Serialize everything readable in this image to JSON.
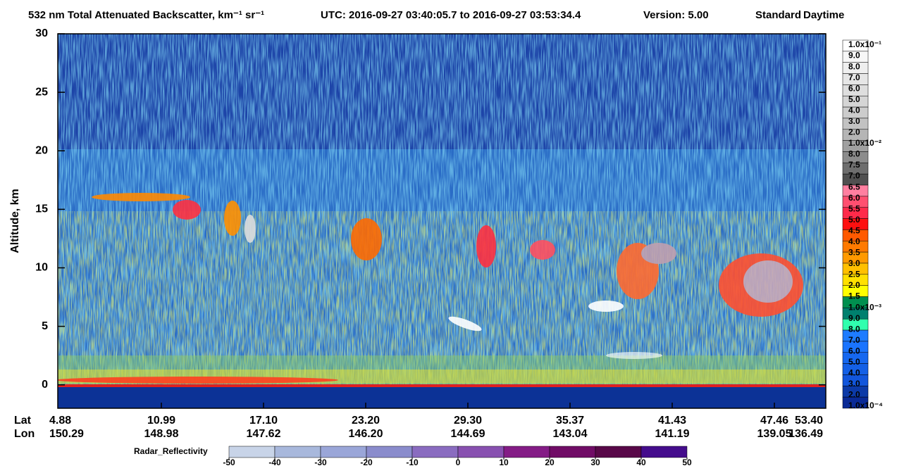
{
  "chart_data": {
    "type": "curtain",
    "title": "532 nm Total Attenuated Backscatter, km⁻¹ sr⁻¹",
    "utc": "UTC:  2016-09-27 03:40:05.7  to  2016-09-27 03:53:34.4",
    "version": "Version: 5.00",
    "mode": "Standard",
    "daytime": "Daytime",
    "ylabel": "Altitude, km",
    "ylim": [
      -2,
      30
    ],
    "yticks": [
      0,
      5,
      10,
      15,
      20,
      25,
      30
    ],
    "x_rows": [
      {
        "name": "Lat",
        "labels": [
          "4.88",
          "10.99",
          "17.10",
          "23.20",
          "29.30",
          "35.37",
          "41.43",
          "47.46",
          "53.40"
        ]
      },
      {
        "name": "Lon",
        "labels": [
          "150.29",
          "148.98",
          "147.62",
          "146.20",
          "144.69",
          "143.04",
          "141.19",
          "139.05",
          "136.49"
        ]
      }
    ],
    "colorbar": {
      "labels": [
        "1.0x10⁻¹",
        "9.0",
        "8.0",
        "7.0",
        "6.0",
        "5.0",
        "4.0",
        "3.0",
        "2.0",
        "1.0x10⁻²",
        "8.0",
        "7.5",
        "7.0",
        "6.5",
        "6.0",
        "5.5",
        "5.0",
        "4.5",
        "4.0",
        "3.5",
        "3.0",
        "2.5",
        "2.0",
        "1.5",
        "1.0x10⁻³",
        "9.0",
        "8.0",
        "7.0",
        "6.0",
        "5.0",
        "4.0",
        "3.0",
        "2.0",
        "1.0x10⁻⁴"
      ],
      "colors": [
        "#ffffff",
        "#f7f7f7",
        "#efefef",
        "#e6e6e6",
        "#dedede",
        "#d5d5d5",
        "#cccccc",
        "#c2c2c2",
        "#b5b5b5",
        "#a0a0a0",
        "#8c8c8c",
        "#6e6e6e",
        "#505050",
        "#ff7fa0",
        "#ff4f70",
        "#ff2a4a",
        "#ff1010",
        "#ff5a00",
        "#ff7a00",
        "#ff9a00",
        "#ffc000",
        "#ffe000",
        "#ffff00",
        "#008f4f",
        "#00806e",
        "#30ffae",
        "#1e7cff",
        "#1a74ff",
        "#1668f0",
        "#1460e6",
        "#1256dc",
        "#0c3aa8",
        "#0a2a96"
      ]
    },
    "radar": {
      "label": "Radar_Reflectivity",
      "ticks": [
        -50,
        -40,
        -30,
        -20,
        -10,
        0,
        10,
        20,
        30,
        40,
        50
      ],
      "colors": [
        "#c8d4e8",
        "#a8b8dc",
        "#9aa6d8",
        "#8a8ccc",
        "#8a6cc0",
        "#8850b0",
        "#841c86",
        "#700c66",
        "#580848",
        "#440c8c"
      ]
    }
  }
}
